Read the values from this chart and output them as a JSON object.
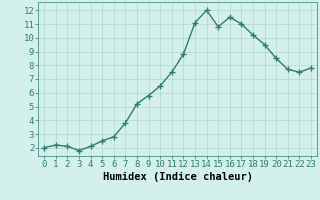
{
  "x": [
    0,
    1,
    2,
    3,
    4,
    5,
    6,
    7,
    8,
    9,
    10,
    11,
    12,
    13,
    14,
    15,
    16,
    17,
    18,
    19,
    20,
    21,
    22,
    23
  ],
  "y": [
    2.0,
    2.2,
    2.1,
    1.8,
    2.1,
    2.5,
    2.8,
    3.8,
    5.2,
    5.8,
    6.5,
    7.5,
    8.8,
    11.1,
    12.0,
    10.8,
    11.5,
    11.0,
    10.2,
    9.5,
    8.5,
    7.7,
    7.5,
    7.8
  ],
  "line_color": "#2e7d6e",
  "marker": "+",
  "marker_size": 4,
  "bg_color": "#d4f0ec",
  "grid_color": "#b0d8d0",
  "xlabel": "Humidex (Indice chaleur)",
  "xlabel_fontsize": 7.5,
  "xlim": [
    -0.5,
    23.5
  ],
  "ylim": [
    1.4,
    12.6
  ],
  "yticks": [
    2,
    3,
    4,
    5,
    6,
    7,
    8,
    9,
    10,
    11,
    12
  ],
  "xticks": [
    0,
    1,
    2,
    3,
    4,
    5,
    6,
    7,
    8,
    9,
    10,
    11,
    12,
    13,
    14,
    15,
    16,
    17,
    18,
    19,
    20,
    21,
    22,
    23
  ],
  "tick_fontsize": 6.5,
  "line_width": 1.0
}
